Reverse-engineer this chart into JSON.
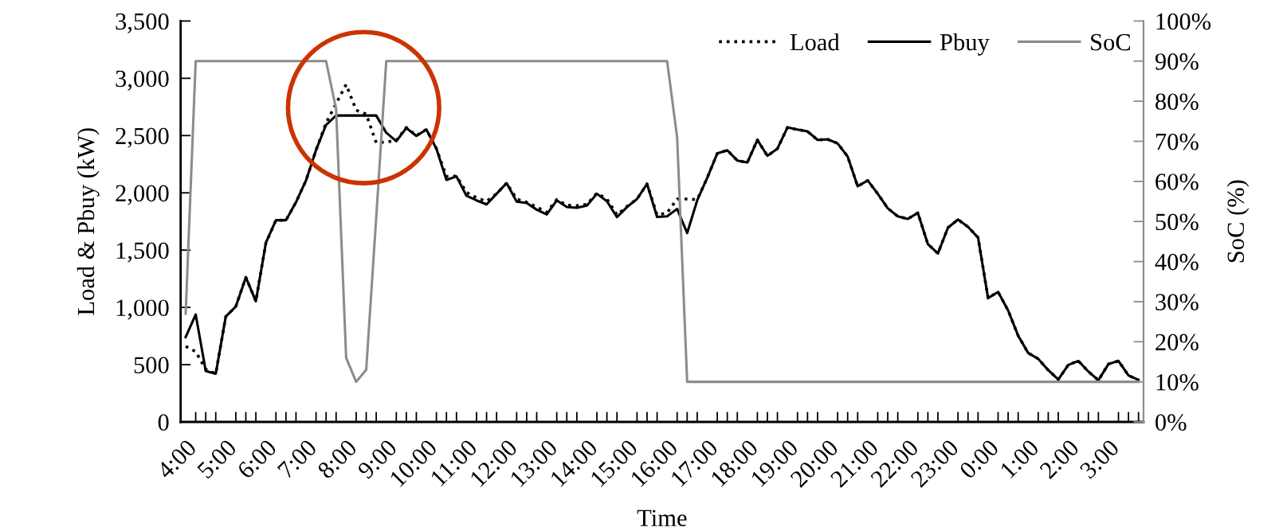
{
  "chart_data": {
    "type": "line",
    "xlabel": "Time",
    "ylabel": "Load & Pbuy (kW)",
    "y2label": "SoC (%)",
    "categories": [
      "4:00",
      null,
      null,
      null,
      "5:00",
      null,
      null,
      null,
      "6:00",
      null,
      null,
      null,
      "7:00",
      null,
      null,
      null,
      "8:00",
      null,
      null,
      null,
      "9:00",
      null,
      null,
      null,
      "10:00",
      null,
      null,
      null,
      "11:00",
      null,
      null,
      null,
      "12:00",
      null,
      null,
      null,
      "13:00",
      null,
      null,
      null,
      "14:00",
      null,
      null,
      null,
      "15:00",
      null,
      null,
      null,
      "16:00",
      null,
      null,
      null,
      "17:00",
      null,
      null,
      null,
      "18:00",
      null,
      null,
      null,
      "19:00",
      null,
      null,
      null,
      "20:00",
      null,
      null,
      null,
      "21:00",
      null,
      null,
      null,
      "22:00",
      null,
      null,
      null,
      "23:00",
      null,
      null,
      null,
      "0:00",
      null,
      null,
      null,
      "1:00",
      null,
      null,
      null,
      "2:00",
      null,
      null,
      null,
      "3:00",
      null,
      null,
      null
    ],
    "series": [
      {
        "name": "Load",
        "color": "#000000",
        "line_style": "dotted",
        "values": [
          660,
          614,
          460,
          421,
          920,
          1008,
          1262,
          1054,
          1564,
          1761,
          1761,
          1918,
          2108,
          2374,
          2610,
          2780,
          2946,
          2722,
          2687,
          2437,
          2444,
          2458,
          2570,
          2500,
          2553,
          2386,
          2143,
          2146,
          2004,
          1957,
          1927,
          1992,
          2085,
          1946,
          1918,
          1876,
          1830,
          1941,
          1892,
          1888,
          1899,
          1997,
          1946,
          1807,
          1881,
          1946,
          2078,
          1807,
          1825,
          1946,
          1946,
          1941,
          2131,
          2344,
          2372,
          2282,
          2265,
          2462,
          2323,
          2386,
          2571,
          2553,
          2536,
          2462,
          2467,
          2432,
          2317,
          2057,
          2108,
          1992,
          1865,
          1795,
          1772,
          1825,
          1552,
          1471,
          1696,
          1767,
          1703,
          1610,
          1082,
          1135,
          973,
          753,
          602,
          551,
          452,
          371,
          498,
          533,
          440,
          364,
          505,
          533,
          405,
          366
        ]
      },
      {
        "name": "Pbuy",
        "color": "#000000",
        "line_style": "solid",
        "values": [
          741,
          938,
          445,
          421,
          920,
          1008,
          1262,
          1054,
          1564,
          1761,
          1761,
          1918,
          2108,
          2374,
          2594,
          2675,
          2675,
          2675,
          2675,
          2675,
          2525,
          2451,
          2566,
          2497,
          2553,
          2386,
          2113,
          2143,
          1974,
          1934,
          1899,
          1992,
          2085,
          1923,
          1911,
          1853,
          1811,
          1934,
          1876,
          1869,
          1888,
          1992,
          1927,
          1788,
          1876,
          1946,
          2078,
          1790,
          1795,
          1860,
          1649,
          1934,
          2131,
          2344,
          2372,
          2282,
          2265,
          2462,
          2323,
          2386,
          2571,
          2553,
          2536,
          2462,
          2467,
          2432,
          2317,
          2057,
          2108,
          1992,
          1865,
          1795,
          1772,
          1825,
          1552,
          1471,
          1696,
          1767,
          1703,
          1610,
          1082,
          1135,
          973,
          753,
          602,
          551,
          452,
          371,
          498,
          533,
          440,
          364,
          505,
          533,
          405,
          366
        ]
      },
      {
        "name": "SoC",
        "color": "#8c8c8c",
        "line_style": "solid",
        "axis": "y2",
        "values": [
          27,
          90,
          90,
          90,
          90,
          90,
          90,
          90,
          90,
          90,
          90,
          90,
          90,
          90,
          90,
          78,
          16,
          10,
          13,
          51,
          90,
          90,
          90,
          90,
          90,
          90,
          90,
          90,
          90,
          90,
          90,
          90,
          90,
          90,
          90,
          90,
          90,
          90,
          90,
          90,
          90,
          90,
          90,
          90,
          90,
          90,
          90,
          90,
          90,
          71,
          10,
          10,
          10,
          10,
          10,
          10,
          10,
          10,
          10,
          10,
          10,
          10,
          10,
          10,
          10,
          10,
          10,
          10,
          10,
          10,
          10,
          10,
          10,
          10,
          10,
          10,
          10,
          10,
          10,
          10,
          10,
          10,
          10,
          10,
          10,
          10,
          10,
          10,
          10,
          10,
          10,
          10,
          10,
          10,
          10,
          10
        ]
      }
    ],
    "ylim": [
      0,
      3500
    ],
    "yticks": [
      0,
      500,
      {
        "value": 1000,
        "label": "1,000"
      },
      {
        "value": 1500,
        "label": "1,500"
      },
      {
        "value": 2000,
        "label": "2,000"
      },
      {
        "value": 2500,
        "label": "2,500"
      },
      {
        "value": 3000,
        "label": "3,000"
      },
      {
        "value": 3500,
        "label": "3,500"
      }
    ],
    "y2lim": [
      0,
      100
    ],
    "y2ticks": [
      {
        "value": 0,
        "label": "0%"
      },
      {
        "value": 10,
        "label": "10%"
      },
      {
        "value": 20,
        "label": "20%"
      },
      {
        "value": 30,
        "label": "30%"
      },
      {
        "value": 40,
        "label": "40%"
      },
      {
        "value": 50,
        "label": "50%"
      },
      {
        "value": 60,
        "label": "60%"
      },
      {
        "value": 70,
        "label": "70%"
      },
      {
        "value": 80,
        "label": "80%"
      },
      {
        "value": 90,
        "label": "90%"
      },
      {
        "value": 100,
        "label": "100%"
      }
    ],
    "grid": false,
    "legend": "top right",
    "marker": "none"
  }
}
